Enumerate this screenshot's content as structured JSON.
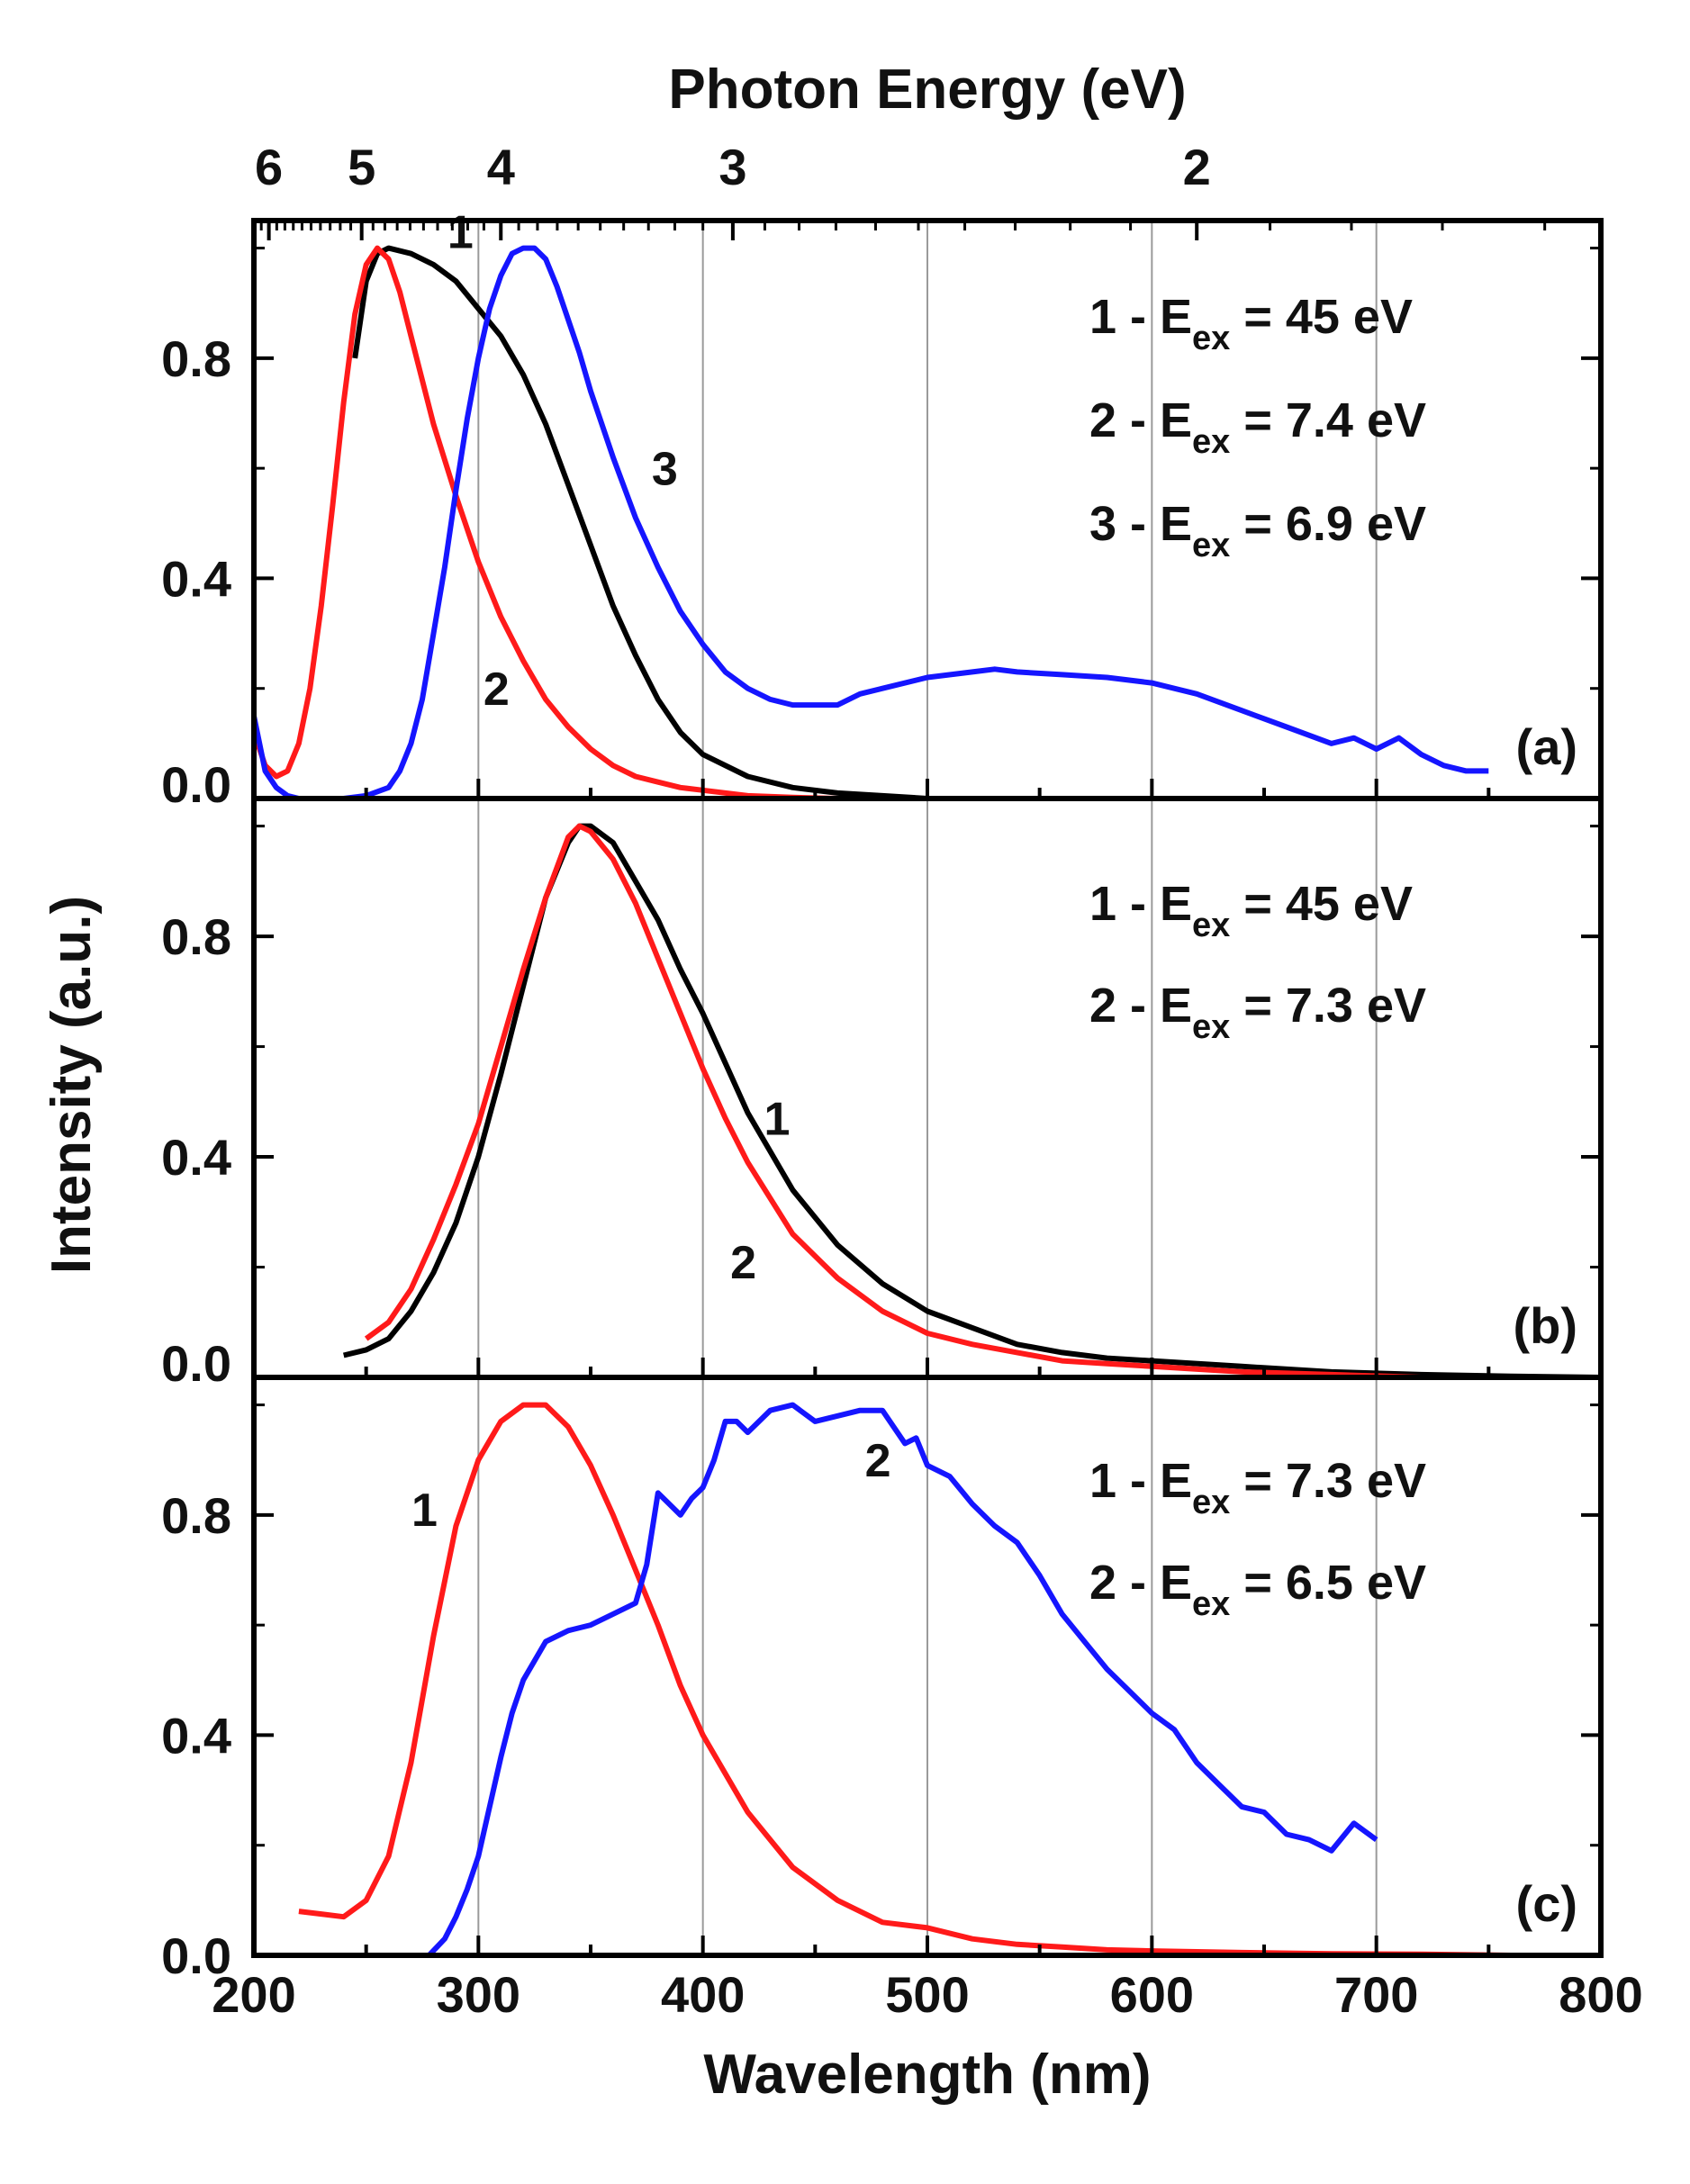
{
  "chart_data": {
    "type": "line",
    "xlabel": "Wavelength (nm)",
    "ylabel": "Intensity (a.u.)",
    "top_xlabel": "Photon Energy (eV)",
    "xlim": [
      200,
      800
    ],
    "x_ticks": [
      "200",
      "300",
      "400",
      "500",
      "600",
      "700",
      "800"
    ],
    "top_ticks": [
      {
        "label": "6",
        "energy": 6
      },
      {
        "label": "5",
        "energy": 5
      },
      {
        "label": "4",
        "energy": 4
      },
      {
        "label": "3",
        "energy": 3
      },
      {
        "label": "2",
        "energy": 2
      }
    ],
    "grid_wavelengths": [
      300,
      400,
      500,
      600,
      700
    ],
    "colors": {
      "black": "#000000",
      "red": "#ff1a1a",
      "blue": "#1515ff",
      "grid": "#9a9a9a"
    },
    "panels": [
      {
        "label": "(a)",
        "ylim": [
          0,
          1.05
        ],
        "y_ticks": [
          "0.0",
          "0.4",
          "0.8"
        ],
        "legend": [
          {
            "text": "1 - E",
            "sub": "ex",
            "tail": " = 45 eV"
          },
          {
            "text": "2 - E",
            "sub": "ex",
            "tail": " = 7.4 eV"
          },
          {
            "text": "3 - E",
            "sub": "ex",
            "tail": " = 6.9 eV"
          }
        ],
        "curve_labels": [
          {
            "text": "1",
            "x": 292,
            "y": 1.0
          },
          {
            "text": "2",
            "x": 308,
            "y": 0.17
          },
          {
            "text": "3",
            "x": 383,
            "y": 0.57
          }
        ],
        "series": [
          {
            "id": "1",
            "color": "black",
            "x": [
              245,
              250,
              255,
              260,
              270,
              280,
              290,
              300,
              310,
              320,
              330,
              340,
              350,
              360,
              370,
              380,
              390,
              400,
              420,
              440,
              460,
              480,
              500
            ],
            "y": [
              0.8,
              0.94,
              0.99,
              1.0,
              0.99,
              0.97,
              0.94,
              0.89,
              0.84,
              0.77,
              0.68,
              0.57,
              0.46,
              0.35,
              0.26,
              0.18,
              0.12,
              0.08,
              0.04,
              0.02,
              0.01,
              0.005,
              0.0
            ]
          },
          {
            "id": "2",
            "color": "red",
            "x": [
              200,
              205,
              210,
              215,
              220,
              225,
              230,
              235,
              240,
              245,
              250,
              255,
              260,
              265,
              270,
              280,
              290,
              300,
              310,
              320,
              330,
              340,
              350,
              360,
              370,
              380,
              390,
              400,
              420,
              440,
              460,
              480,
              500,
              550,
              600
            ],
            "y": [
              0.12,
              0.06,
              0.04,
              0.05,
              0.1,
              0.2,
              0.35,
              0.53,
              0.72,
              0.88,
              0.97,
              1.0,
              0.98,
              0.92,
              0.84,
              0.68,
              0.55,
              0.43,
              0.33,
              0.25,
              0.18,
              0.13,
              0.09,
              0.06,
              0.04,
              0.03,
              0.02,
              0.015,
              0.005,
              0.002,
              0.0,
              0.0,
              0.0,
              0.0,
              0.0
            ]
          },
          {
            "id": "3",
            "color": "blue",
            "x": [
              200,
              205,
              210,
              215,
              220,
              230,
              240,
              250,
              260,
              265,
              270,
              275,
              280,
              285,
              290,
              295,
              300,
              305,
              310,
              315,
              320,
              325,
              330,
              335,
              340,
              345,
              350,
              360,
              370,
              380,
              390,
              400,
              410,
              420,
              430,
              440,
              450,
              460,
              470,
              480,
              500,
              520,
              530,
              540,
              560,
              580,
              600,
              620,
              640,
              660,
              680,
              690,
              700,
              710,
              720,
              730,
              740,
              750
            ],
            "y": [
              0.15,
              0.05,
              0.02,
              0.005,
              0.0,
              0.0,
              0.0,
              0.005,
              0.02,
              0.05,
              0.1,
              0.18,
              0.3,
              0.42,
              0.56,
              0.69,
              0.8,
              0.89,
              0.95,
              0.99,
              1.0,
              1.0,
              0.98,
              0.93,
              0.87,
              0.81,
              0.74,
              0.62,
              0.51,
              0.42,
              0.34,
              0.28,
              0.23,
              0.2,
              0.18,
              0.17,
              0.17,
              0.17,
              0.19,
              0.2,
              0.22,
              0.23,
              0.235,
              0.23,
              0.225,
              0.22,
              0.21,
              0.19,
              0.16,
              0.13,
              0.1,
              0.11,
              0.09,
              0.11,
              0.08,
              0.06,
              0.05,
              0.05
            ]
          }
        ]
      },
      {
        "label": "(b)",
        "ylim": [
          0,
          1.05
        ],
        "y_ticks": [
          "0.0",
          "0.4",
          "0.8"
        ],
        "legend": [
          {
            "text": "1 - E",
            "sub": "ex",
            "tail": " = 45 eV"
          },
          {
            "text": "2 - E",
            "sub": "ex",
            "tail": " = 7.3 eV"
          }
        ],
        "curve_labels": [
          {
            "text": "1",
            "x": 433,
            "y": 0.44
          },
          {
            "text": "2",
            "x": 418,
            "y": 0.18
          }
        ],
        "series": [
          {
            "id": "1",
            "color": "black",
            "x": [
              240,
              250,
              260,
              270,
              280,
              290,
              300,
              310,
              320,
              330,
              340,
              345,
              350,
              360,
              370,
              380,
              390,
              400,
              410,
              420,
              440,
              460,
              480,
              500,
              520,
              540,
              560,
              580,
              600,
              640,
              680,
              720,
              760,
              800
            ],
            "y": [
              0.04,
              0.05,
              0.07,
              0.12,
              0.19,
              0.28,
              0.4,
              0.55,
              0.71,
              0.87,
              0.97,
              1.0,
              1.0,
              0.97,
              0.9,
              0.83,
              0.74,
              0.66,
              0.57,
              0.48,
              0.34,
              0.24,
              0.17,
              0.12,
              0.09,
              0.06,
              0.045,
              0.035,
              0.03,
              0.02,
              0.01,
              0.005,
              0.002,
              0.0
            ]
          },
          {
            "id": "2",
            "color": "red",
            "x": [
              250,
              260,
              270,
              280,
              290,
              300,
              310,
              320,
              330,
              340,
              345,
              350,
              360,
              370,
              380,
              390,
              400,
              410,
              420,
              440,
              460,
              480,
              500,
              520,
              540,
              560,
              580,
              600,
              640,
              680,
              720
            ],
            "y": [
              0.07,
              0.1,
              0.16,
              0.25,
              0.35,
              0.46,
              0.6,
              0.74,
              0.87,
              0.98,
              1.0,
              0.99,
              0.94,
              0.86,
              0.76,
              0.66,
              0.56,
              0.47,
              0.39,
              0.26,
              0.18,
              0.12,
              0.08,
              0.06,
              0.045,
              0.03,
              0.025,
              0.02,
              0.01,
              0.005,
              0.0
            ]
          }
        ]
      },
      {
        "label": "(c)",
        "ylim": [
          0,
          1.05
        ],
        "y_ticks": [
          "0.0",
          "0.4",
          "0.8"
        ],
        "legend": [
          {
            "text": "1 - E",
            "sub": "ex",
            "tail": " = 7.3 eV"
          },
          {
            "text": "2 - E",
            "sub": "ex",
            "tail": " = 6.5 eV"
          }
        ],
        "curve_labels": [
          {
            "text": "1",
            "x": 276,
            "y": 0.78
          },
          {
            "text": "2",
            "x": 478,
            "y": 0.87
          }
        ],
        "series": [
          {
            "id": "1",
            "color": "red",
            "x": [
              220,
              230,
              240,
              250,
              260,
              270,
              280,
              290,
              300,
              310,
              320,
              325,
              330,
              340,
              350,
              360,
              370,
              380,
              390,
              400,
              420,
              440,
              460,
              480,
              500,
              520,
              540,
              560,
              580,
              600,
              640,
              680,
              720,
              760,
              800
            ],
            "y": [
              0.08,
              0.075,
              0.07,
              0.1,
              0.18,
              0.35,
              0.58,
              0.78,
              0.9,
              0.97,
              1.0,
              1.0,
              1.0,
              0.96,
              0.89,
              0.8,
              0.7,
              0.6,
              0.49,
              0.4,
              0.26,
              0.16,
              0.1,
              0.06,
              0.05,
              0.03,
              0.02,
              0.015,
              0.01,
              0.008,
              0.005,
              0.003,
              0.002,
              0.0,
              0.0
            ]
          },
          {
            "id": "2",
            "color": "blue",
            "x": [
              278,
              285,
              290,
              295,
              300,
              305,
              310,
              315,
              320,
              330,
              340,
              350,
              360,
              370,
              375,
              380,
              385,
              390,
              395,
              400,
              405,
              410,
              415,
              420,
              430,
              440,
              450,
              460,
              470,
              480,
              490,
              495,
              500,
              510,
              520,
              530,
              540,
              550,
              560,
              570,
              580,
              590,
              600,
              610,
              620,
              630,
              640,
              650,
              660,
              670,
              680,
              690,
              700
            ],
            "y": [
              0.0,
              0.03,
              0.07,
              0.12,
              0.18,
              0.27,
              0.36,
              0.44,
              0.5,
              0.57,
              0.59,
              0.6,
              0.62,
              0.64,
              0.71,
              0.84,
              0.82,
              0.8,
              0.83,
              0.85,
              0.9,
              0.97,
              0.97,
              0.95,
              0.99,
              1.0,
              0.97,
              0.98,
              0.99,
              0.99,
              0.93,
              0.94,
              0.89,
              0.87,
              0.82,
              0.78,
              0.75,
              0.69,
              0.62,
              0.57,
              0.52,
              0.48,
              0.44,
              0.41,
              0.35,
              0.31,
              0.27,
              0.26,
              0.22,
              0.21,
              0.19,
              0.24,
              0.21
            ]
          }
        ]
      }
    ]
  }
}
